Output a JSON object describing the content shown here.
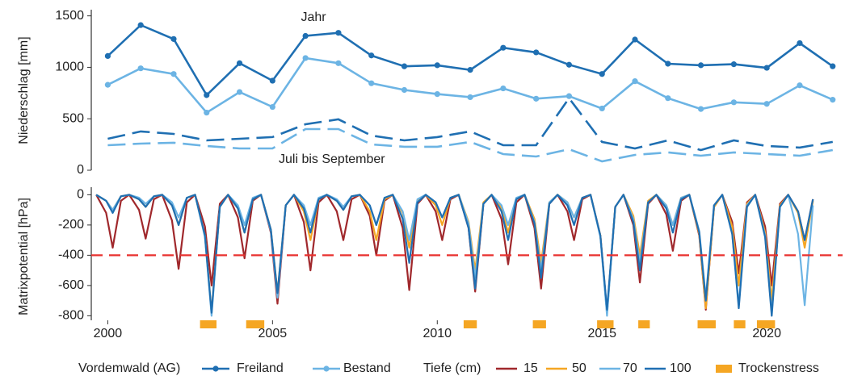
{
  "chart_data": [
    {
      "type": "line",
      "ylabel": "Niederschlag [mm]",
      "site_label": "Vordemwald (AG)",
      "annotations": [
        "Jahr",
        "Juli bis September"
      ],
      "x": [
        2000,
        2001,
        2002,
        2003,
        2004,
        2005,
        2006,
        2007,
        2008,
        2009,
        2010,
        2011,
        2012,
        2013,
        2014,
        2015,
        2016,
        2017,
        2018,
        2019,
        2020,
        2021,
        2022
      ],
      "xlim": [
        1999.5,
        2022.3
      ],
      "ylim": [
        0,
        1560
      ],
      "yticks": [
        0,
        500,
        1000,
        1500
      ],
      "series": [
        {
          "name": "Freiland",
          "color": "#1f6fb2",
          "values": [
            1110,
            1410,
            1275,
            730,
            1040,
            870,
            1305,
            1335,
            1115,
            1010,
            1020,
            975,
            1190,
            1145,
            1025,
            935,
            1270,
            1035,
            1020,
            1030,
            995,
            1235,
            1010
          ],
          "values_jul_sep": [
            306,
            377,
            353,
            290,
            306,
            322,
            447,
            495,
            337,
            290,
            322,
            377,
            243,
            243,
            700,
            275,
            212,
            290,
            196,
            290,
            235,
            220,
            275
          ]
        },
        {
          "name": "Bestand",
          "color": "#6cb4e4",
          "values": [
            830,
            990,
            935,
            560,
            760,
            615,
            1090,
            1040,
            845,
            780,
            740,
            710,
            795,
            695,
            720,
            600,
            865,
            700,
            595,
            660,
            645,
            825,
            685
          ],
          "values_jul_sep": [
            243,
            259,
            267,
            235,
            212,
            212,
            400,
            400,
            251,
            228,
            228,
            275,
            157,
            133,
            204,
            86,
            149,
            173,
            141,
            173,
            157,
            141,
            196
          ]
        }
      ]
    },
    {
      "type": "line",
      "ylabel": "Matrixpotential [hPa]",
      "legend_title": "Tiefe (cm)",
      "xlim": [
        1999.5,
        2022.3
      ],
      "xticks": [
        2000,
        2005,
        2010,
        2015,
        2020
      ],
      "ylim": [
        -830,
        50
      ],
      "yticks": [
        0,
        -200,
        -400,
        -600,
        -800
      ],
      "reference_line": -400,
      "reference_color": "#e8312f",
      "x": [
        1999.65,
        1999.95,
        2000.15,
        2000.4,
        2000.65,
        2000.95,
        2001.15,
        2001.4,
        2001.65,
        2001.95,
        2002.15,
        2002.4,
        2002.65,
        2002.95,
        2003.15,
        2003.4,
        2003.65,
        2003.95,
        2004.15,
        2004.4,
        2004.65,
        2004.95,
        2005.15,
        2005.4,
        2005.65,
        2005.95,
        2006.15,
        2006.4,
        2006.65,
        2006.95,
        2007.15,
        2007.4,
        2007.65,
        2007.95,
        2008.15,
        2008.4,
        2008.65,
        2008.95,
        2009.15,
        2009.4,
        2009.65,
        2009.95,
        2010.15,
        2010.4,
        2010.65,
        2010.95,
        2011.15,
        2011.4,
        2011.65,
        2011.95,
        2012.15,
        2012.4,
        2012.65,
        2012.95,
        2013.15,
        2013.4,
        2013.65,
        2013.95,
        2014.15,
        2014.4,
        2014.65,
        2014.95,
        2015.15,
        2015.4,
        2015.65,
        2015.95,
        2016.15,
        2016.4,
        2016.65,
        2016.95,
        2017.15,
        2017.4,
        2017.65,
        2017.95,
        2018.15,
        2018.4,
        2018.65,
        2018.95,
        2019.15,
        2019.4,
        2019.65,
        2019.95,
        2020.15,
        2020.4,
        2020.65,
        2020.95,
        2021.15,
        2021.4
      ],
      "series": [
        {
          "name": "15",
          "color": "#a0282c",
          "values": [
            0,
            -120,
            -350,
            -40,
            0,
            -100,
            -290,
            -30,
            0,
            -170,
            -490,
            -50,
            0,
            -210,
            -600,
            -60,
            0,
            -150,
            -420,
            -40,
            0,
            -250,
            -720,
            -70,
            0,
            -180,
            -500,
            -50,
            0,
            -110,
            -300,
            -30,
            0,
            -140,
            -400,
            -40,
            0,
            -220,
            -630,
            -60,
            0,
            -110,
            -300,
            -30,
            0,
            -220,
            -640,
            -60,
            0,
            -160,
            -460,
            -50,
            0,
            -220,
            -620,
            -60,
            0,
            -110,
            -300,
            -30,
            0,
            -270,
            -780,
            -80,
            0,
            -200,
            -580,
            -60,
            0,
            -130,
            -370,
            -40,
            0,
            -270,
            -760,
            -80,
            0,
            -180,
            -520,
            -50,
            0,
            -210,
            -600,
            -60,
            0,
            -110,
            -300,
            -30
          ]
        },
        {
          "name": "50",
          "color": "#f5a623",
          "values": [
            0,
            -40,
            -100,
            -10,
            0,
            -30,
            -80,
            -10,
            0,
            -70,
            -200,
            -20,
            0,
            -270,
            -780,
            -80,
            0,
            -90,
            -250,
            -30,
            0,
            -230,
            -650,
            -70,
            0,
            -110,
            -300,
            -30,
            0,
            -40,
            -100,
            -10,
            0,
            -110,
            -300,
            -30,
            0,
            -120,
            -350,
            -40,
            0,
            -70,
            -200,
            -20,
            0,
            -180,
            -500,
            -50,
            0,
            -90,
            -250,
            -30,
            0,
            -160,
            -450,
            -50,
            0,
            -50,
            -150,
            -20,
            0,
            -270,
            -780,
            -80,
            0,
            -140,
            -400,
            -40,
            0,
            -70,
            -200,
            -20,
            0,
            -260,
            -750,
            -80,
            0,
            -210,
            -600,
            -60,
            0,
            -250,
            -700,
            -70,
            0,
            -120,
            -350,
            -40
          ]
        },
        {
          "name": "70",
          "color": "#6cb4e4",
          "values": [
            0,
            -40,
            -100,
            -10,
            0,
            -20,
            -60,
            -10,
            0,
            -50,
            -150,
            -20,
            0,
            -280,
            -800,
            -80,
            0,
            -70,
            -200,
            -20,
            0,
            -240,
            -680,
            -70,
            0,
            -70,
            -200,
            -20,
            0,
            -30,
            -80,
            -10,
            0,
            -70,
            -200,
            -20,
            0,
            -110,
            -300,
            -30,
            0,
            -50,
            -150,
            -20,
            0,
            -190,
            -550,
            -60,
            0,
            -70,
            -200,
            -20,
            0,
            -180,
            -500,
            -50,
            0,
            -50,
            -150,
            -20,
            0,
            -280,
            -800,
            -80,
            0,
            -160,
            -450,
            -50,
            0,
            -70,
            -200,
            -20,
            0,
            -240,
            -680,
            -70,
            0,
            -260,
            -730,
            -70,
            0,
            -270,
            -780,
            -80,
            0,
            -260,
            -730,
            -70
          ]
        },
        {
          "name": "100",
          "color": "#1f6fb2",
          "values": [
            0,
            -40,
            -120,
            -10,
            0,
            -30,
            -80,
            -10,
            0,
            -70,
            -200,
            -20,
            0,
            -270,
            -780,
            -80,
            0,
            -90,
            -250,
            -30,
            0,
            -230,
            -650,
            -70,
            0,
            -90,
            -250,
            -30,
            0,
            -40,
            -100,
            -10,
            0,
            -70,
            -200,
            -20,
            0,
            -160,
            -450,
            -50,
            0,
            -50,
            -150,
            -20,
            0,
            -220,
            -620,
            -60,
            0,
            -110,
            -300,
            -30,
            0,
            -190,
            -550,
            -60,
            0,
            -70,
            -200,
            -20,
            0,
            -270,
            -760,
            -80,
            0,
            -180,
            -500,
            -50,
            0,
            -90,
            -250,
            -30,
            0,
            -250,
            -700,
            -70,
            0,
            -260,
            -750,
            -80,
            0,
            -280,
            -800,
            -80,
            0,
            -110,
            -300,
            -30
          ]
        }
      ],
      "stress": {
        "name": "Trockenstress",
        "color": "#f5a623",
        "periods": [
          [
            2002.8,
            2003.3
          ],
          [
            2004.2,
            2004.75
          ],
          [
            2010.8,
            2011.2
          ],
          [
            2012.9,
            2013.3
          ],
          [
            2014.85,
            2015.35
          ],
          [
            2016.1,
            2016.45
          ],
          [
            2017.9,
            2018.45
          ],
          [
            2019.0,
            2019.35
          ],
          [
            2019.7,
            2020.25
          ]
        ]
      }
    }
  ]
}
